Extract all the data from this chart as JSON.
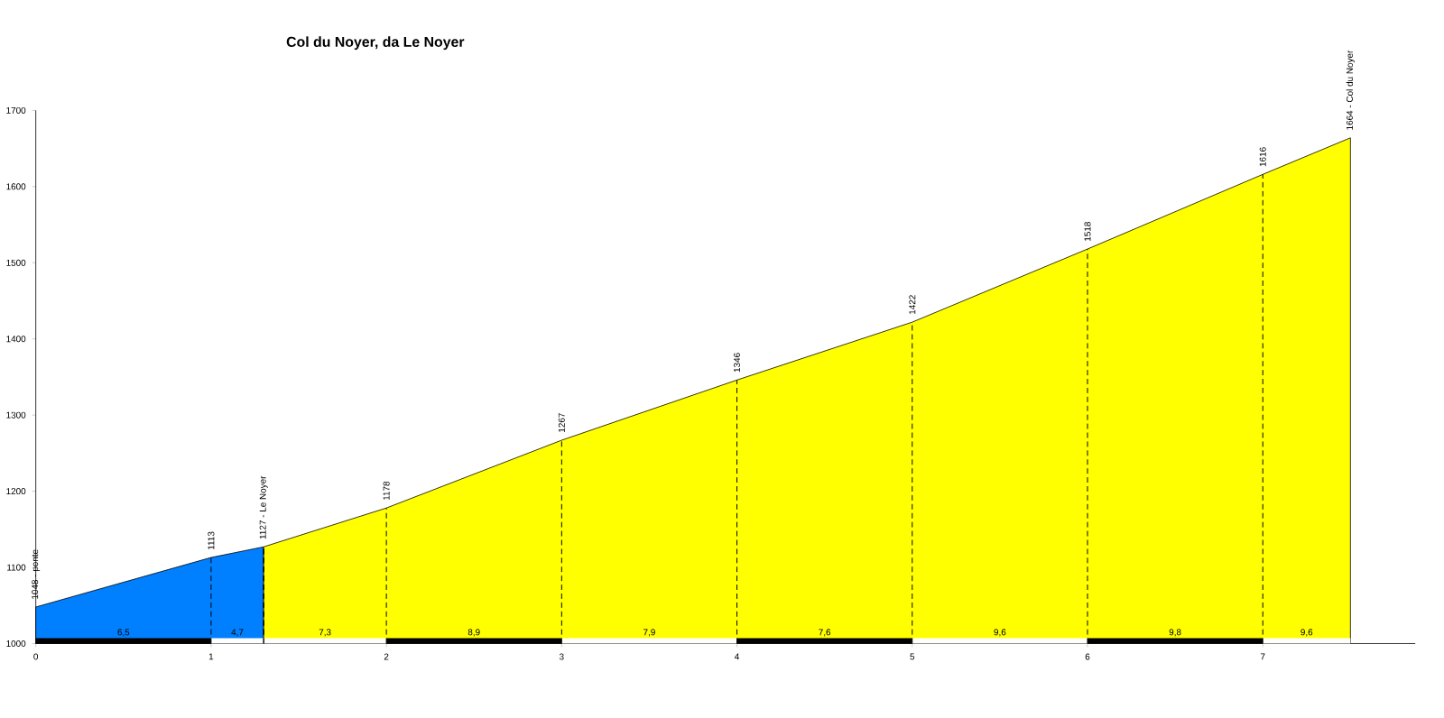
{
  "chart_data": {
    "type": "area",
    "title": "Col du Noyer, da Le Noyer",
    "xlim": [
      0,
      7.87
    ],
    "ylim": [
      1000,
      1700
    ],
    "xticks": [
      0,
      1,
      2,
      3,
      4,
      5,
      6,
      7
    ],
    "yticks": [
      1000,
      1100,
      1200,
      1300,
      1400,
      1500,
      1600,
      1700
    ],
    "marker": "none",
    "series": [
      {
        "color": "#0080ff",
        "x": [
          0,
          1,
          1.3
        ],
        "values": [
          1048,
          1113,
          1127
        ],
        "value_labels": [
          "1048 - ponte",
          "1113",
          null
        ]
      },
      {
        "color": "#ffff00",
        "x": [
          1.3,
          2,
          3,
          4,
          5,
          6,
          7,
          7.5
        ],
        "values": [
          1127,
          1178,
          1267,
          1346,
          1422,
          1518,
          1616,
          1664
        ],
        "value_labels": [
          "1127 - Le Noyer",
          "1178",
          "1267",
          "1346",
          "1422",
          "1518",
          "1616",
          "1664 - Col du Noyer"
        ]
      }
    ],
    "annotations": [
      {
        "text": "6,5",
        "x": 0.5,
        "y": 1000
      },
      {
        "text": "4,7",
        "x": 1.15,
        "y": 1000
      },
      {
        "text": "7,3",
        "x": 1.65,
        "y": 1000
      },
      {
        "text": "8,9",
        "x": 2.5,
        "y": 1000
      },
      {
        "text": "7,9",
        "x": 3.5,
        "y": 1000
      },
      {
        "text": "7,6",
        "x": 4.5,
        "y": 1000
      },
      {
        "text": "9,6",
        "x": 5.5,
        "y": 1000
      },
      {
        "text": "9,8",
        "x": 6.5,
        "y": 1000
      },
      {
        "text": "9,6",
        "x": 7.25,
        "y": 1000
      }
    ]
  }
}
